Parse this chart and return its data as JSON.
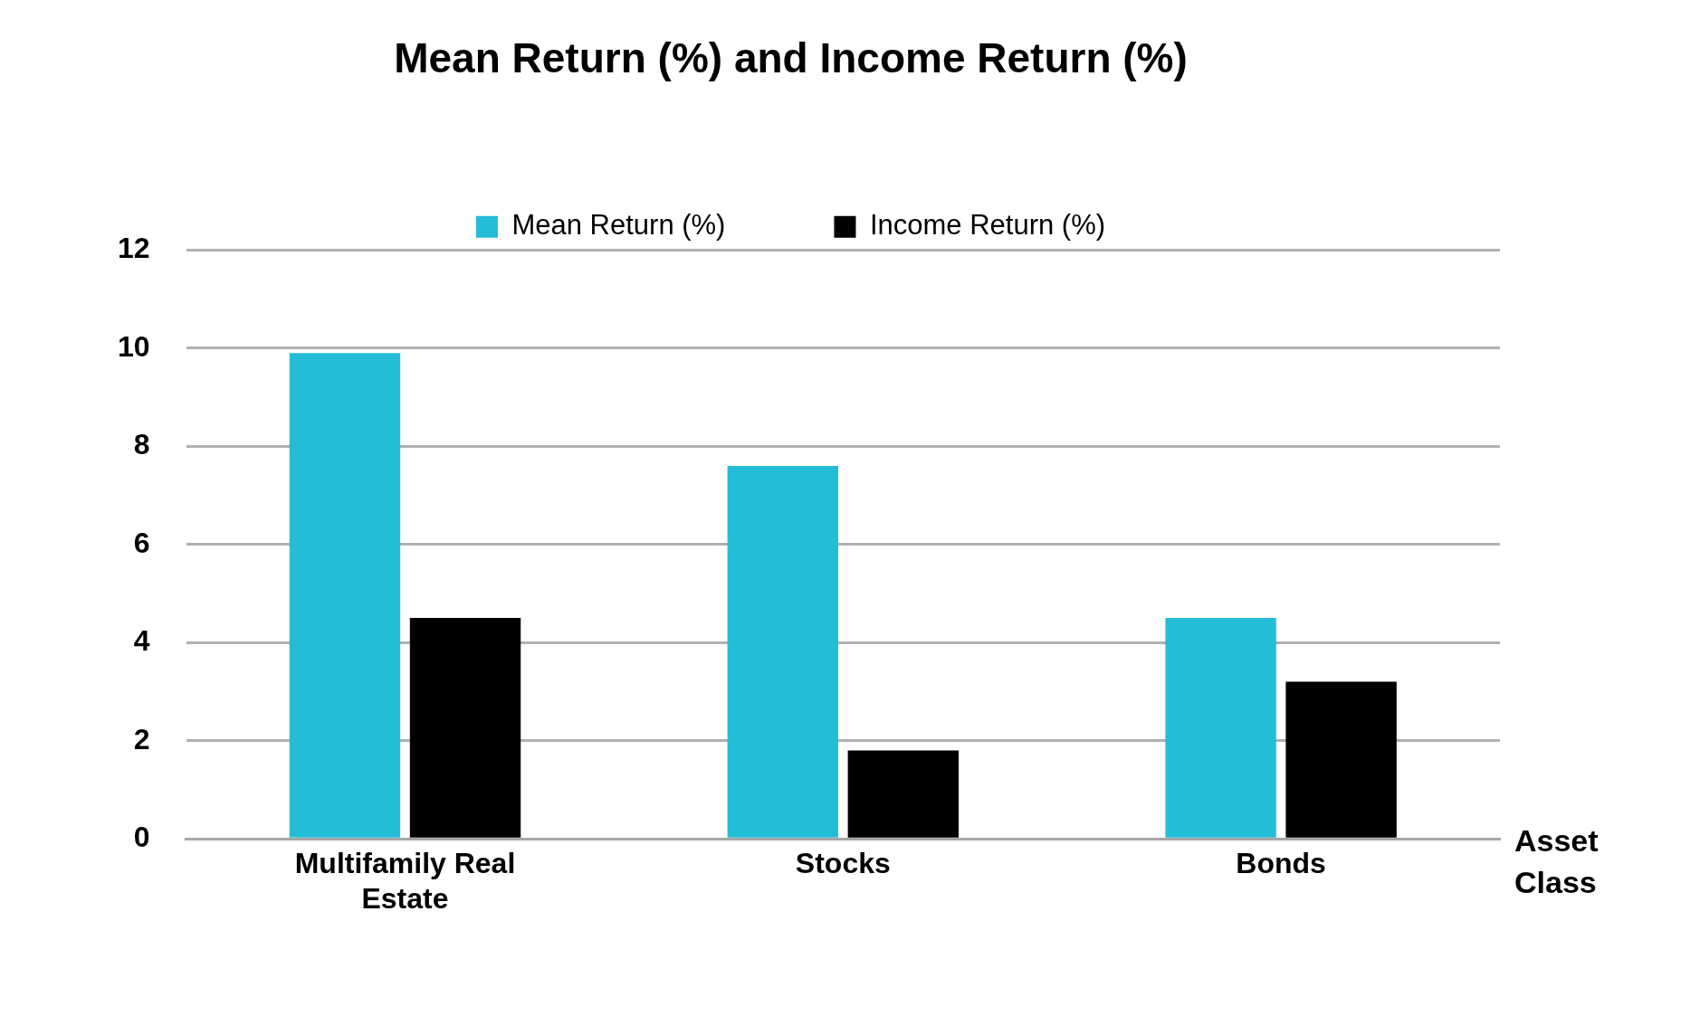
{
  "chart_data": {
    "type": "bar",
    "title": "Mean Return (%) and Income Return (%)",
    "xlabel": "Asset Class",
    "categories": [
      "Multifamily Real Estate",
      "Stocks",
      "Bonds"
    ],
    "series": [
      {
        "name": "Mean Return (%)",
        "color": "#24bcd6",
        "values": [
          9.9,
          7.6,
          4.5
        ]
      },
      {
        "name": "Income Return (%)",
        "color": "#000000",
        "values": [
          4.5,
          1.8,
          3.2
        ]
      }
    ],
    "ylim": [
      0,
      12
    ],
    "yticks": [
      0,
      2,
      4,
      6,
      8,
      10,
      12
    ],
    "grid": "y",
    "legend": "top"
  }
}
